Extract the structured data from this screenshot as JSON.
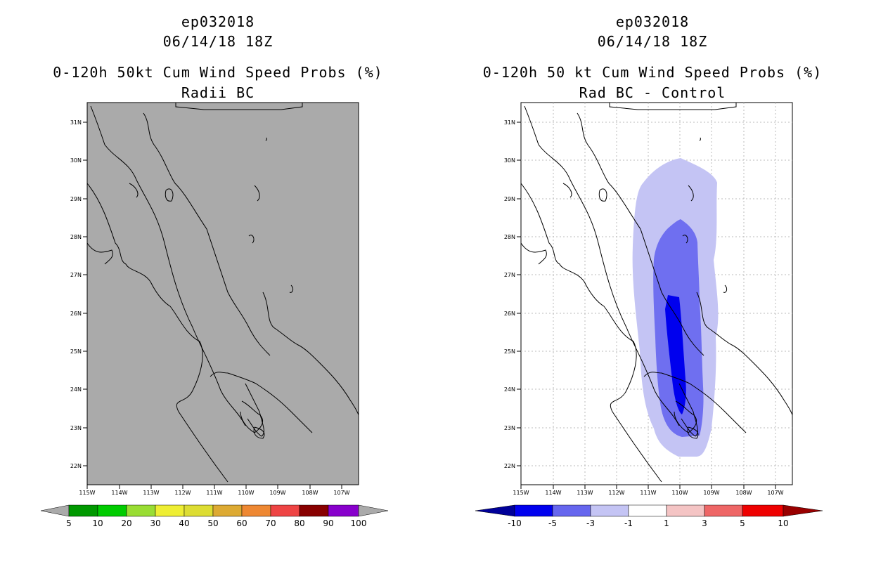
{
  "left_panel": {
    "storm_id": "ep032018",
    "datetime": "06/14/18 18Z",
    "title": "0-120h 50kt Cum Wind Speed Probs (%)",
    "subtitle": "Radii BC",
    "background_color": "#aaaaaa",
    "colorbar": {
      "labels": [
        "5",
        "10",
        "20",
        "30",
        "40",
        "50",
        "60",
        "70",
        "80",
        "90",
        "100"
      ],
      "colors": [
        "#009900",
        "#00cc00",
        "#99dd33",
        "#eeee33",
        "#dddd33",
        "#ddaa33",
        "#ee8833",
        "#ee4444",
        "#880000",
        "#8800cc"
      ]
    }
  },
  "right_panel": {
    "storm_id": "ep032018",
    "datetime": "06/14/18 18Z",
    "title": "0-120h 50 kt Cum Wind Speed Probs (%)",
    "subtitle": "Rad BC - Control",
    "colorbar": {
      "labels": [
        "-10",
        "-5",
        "-3",
        "-1",
        "1",
        "3",
        "5",
        "10"
      ],
      "colors": [
        "#000099",
        "#0000ee",
        "#6666ee",
        "#c4c4f4",
        "#ffffff",
        "#f4c4c4",
        "#ee6666",
        "#ee0000",
        "#990000"
      ]
    }
  },
  "axes": {
    "lat_labels": [
      "31N",
      "30N",
      "29N",
      "28N",
      "27N",
      "26N",
      "25N",
      "24N",
      "23N",
      "22N"
    ],
    "lon_labels": [
      "115W",
      "114W",
      "113W",
      "112W",
      "111W",
      "110W",
      "109W",
      "108W",
      "107W"
    ]
  }
}
